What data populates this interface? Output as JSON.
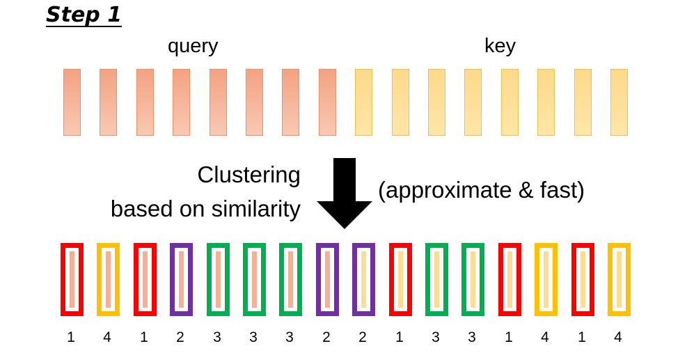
{
  "title": "Step 1",
  "labels": {
    "query": "query",
    "key": "key"
  },
  "caption": {
    "line1": "Clustering",
    "line2": "based on similarity"
  },
  "note": "(approximate & fast)",
  "arrow_icon": "down-arrow-icon",
  "colors": {
    "query_fill": "#f4a282",
    "key_fill": "#fed98a",
    "cluster_1": "#ff0000",
    "cluster_2": "#7030a0",
    "cluster_3": "#00b050",
    "cluster_4": "#ffc000"
  },
  "tokens": [
    {
      "kind": "query",
      "cluster": "1"
    },
    {
      "kind": "query",
      "cluster": "4"
    },
    {
      "kind": "query",
      "cluster": "1"
    },
    {
      "kind": "query",
      "cluster": "2"
    },
    {
      "kind": "query",
      "cluster": "3"
    },
    {
      "kind": "query",
      "cluster": "3"
    },
    {
      "kind": "query",
      "cluster": "3"
    },
    {
      "kind": "query",
      "cluster": "2"
    },
    {
      "kind": "key",
      "cluster": "2"
    },
    {
      "kind": "key",
      "cluster": "1"
    },
    {
      "kind": "key",
      "cluster": "3"
    },
    {
      "kind": "key",
      "cluster": "3"
    },
    {
      "kind": "key",
      "cluster": "1"
    },
    {
      "kind": "key",
      "cluster": "4"
    },
    {
      "kind": "key",
      "cluster": "1"
    },
    {
      "kind": "key",
      "cluster": "4"
    }
  ]
}
